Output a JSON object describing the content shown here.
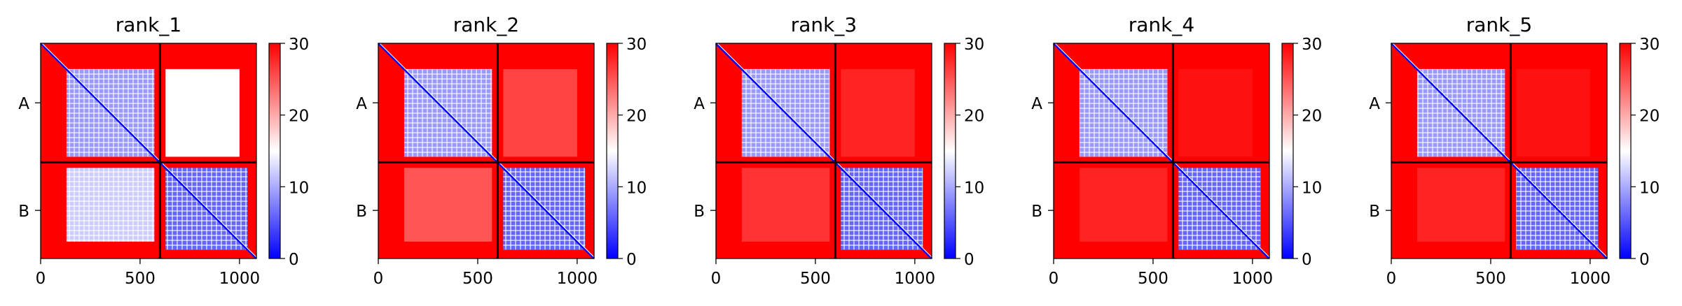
{
  "chart_data": [
    {
      "type": "heatmap",
      "title": "rank_1",
      "row_labels": [
        "A",
        "B"
      ],
      "x_ticks": [
        0,
        500,
        1000
      ],
      "x_range": [
        0,
        1085
      ],
      "chain_boundary": 600,
      "colorbar": {
        "ticks": [
          0,
          10,
          20,
          30
        ],
        "range": [
          0,
          30
        ],
        "cmap": "bwr"
      },
      "blocks": {
        "A_A": 9,
        "A_B": 15,
        "B_A": 12,
        "B_B": 6,
        "background": 30
      }
    },
    {
      "type": "heatmap",
      "title": "rank_2",
      "row_labels": [
        "A",
        "B"
      ],
      "x_ticks": [
        0,
        500,
        1000
      ],
      "x_range": [
        0,
        1085
      ],
      "chain_boundary": 600,
      "colorbar": {
        "ticks": [
          0,
          10,
          20,
          30
        ],
        "range": [
          0,
          30
        ],
        "cmap": "bwr"
      },
      "blocks": {
        "A_A": 9,
        "A_B": 26,
        "B_A": 25,
        "B_B": 6,
        "background": 30
      }
    },
    {
      "type": "heatmap",
      "title": "rank_3",
      "row_labels": [
        "A",
        "B"
      ],
      "x_ticks": [
        0,
        500,
        1000
      ],
      "x_range": [
        0,
        1085
      ],
      "chain_boundary": 600,
      "colorbar": {
        "ticks": [
          0,
          10,
          20,
          30
        ],
        "range": [
          0,
          30
        ],
        "cmap": "bwr"
      },
      "blocks": {
        "A_A": 9,
        "A_B": 28,
        "B_A": 27,
        "B_B": 6,
        "background": 30
      }
    },
    {
      "type": "heatmap",
      "title": "rank_4",
      "row_labels": [
        "A",
        "B"
      ],
      "x_ticks": [
        0,
        500,
        1000
      ],
      "x_range": [
        0,
        1085
      ],
      "chain_boundary": 600,
      "colorbar": {
        "ticks": [
          0,
          10,
          20,
          30
        ],
        "range": [
          0,
          30
        ],
        "cmap": "bwr"
      },
      "blocks": {
        "A_A": 9,
        "A_B": 29,
        "B_A": 28,
        "B_B": 6,
        "background": 30
      }
    },
    {
      "type": "heatmap",
      "title": "rank_5",
      "row_labels": [
        "A",
        "B"
      ],
      "x_ticks": [
        0,
        500,
        1000
      ],
      "x_range": [
        0,
        1085
      ],
      "chain_boundary": 600,
      "colorbar": {
        "ticks": [
          0,
          10,
          20,
          30
        ],
        "range": [
          0,
          30
        ],
        "cmap": "bwr"
      },
      "blocks": {
        "A_A": 9,
        "A_B": 29,
        "B_A": 28,
        "B_B": 6,
        "background": 30
      }
    }
  ],
  "colors": {
    "low": "#0000ff",
    "mid": "#ffffff",
    "high": "#ff0000",
    "boundary": "#000000"
  }
}
